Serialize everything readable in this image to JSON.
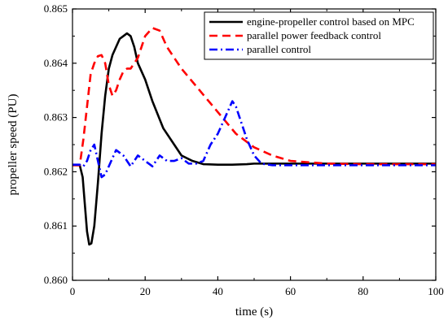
{
  "chart_data": {
    "type": "line",
    "title": "",
    "xlabel": "time (s)",
    "ylabel": "propeller speed (PU)",
    "xlim": [
      0,
      100
    ],
    "ylim": [
      0.86,
      0.865
    ],
    "x_ticks": [
      0,
      20,
      40,
      60,
      80,
      100
    ],
    "y_ticks": [
      0.86,
      0.861,
      0.862,
      0.863,
      0.864,
      0.865
    ],
    "x_tick_labels": [
      "0",
      "20",
      "40",
      "60",
      "80",
      "100"
    ],
    "y_tick_labels": [
      "0.860",
      "0.861",
      "0.862",
      "0.863",
      "0.864",
      "0.865"
    ],
    "grid": false,
    "legend_position": "top-right",
    "series": [
      {
        "name": "engine-propeller control based on MPC",
        "color": "#000000",
        "dash": "solid",
        "x": [
          0,
          2,
          2.8,
          3.4,
          4,
          4.6,
          5.2,
          6,
          7,
          8,
          9,
          10,
          11,
          12,
          13,
          14,
          15,
          16,
          17,
          18,
          20,
          22,
          25,
          28,
          30,
          33,
          36,
          40,
          44,
          48,
          50,
          55,
          60,
          70,
          80,
          90,
          100
        ],
        "y": [
          0.86212,
          0.86212,
          0.8619,
          0.8614,
          0.8609,
          0.86066,
          0.86068,
          0.861,
          0.8618,
          0.8627,
          0.8634,
          0.8639,
          0.86415,
          0.8643,
          0.86445,
          0.8645,
          0.86455,
          0.8645,
          0.8643,
          0.864,
          0.8637,
          0.8633,
          0.8628,
          0.8625,
          0.8623,
          0.8622,
          0.86214,
          0.86213,
          0.86213,
          0.86214,
          0.86215,
          0.86215,
          0.86215,
          0.86215,
          0.86215,
          0.86215,
          0.86215
        ]
      },
      {
        "name": "parallel power feedback control",
        "color": "#ff0000",
        "dash": "dashed",
        "x": [
          0,
          2,
          3,
          4,
          5,
          6,
          7,
          8,
          9,
          10,
          11,
          12,
          13,
          14,
          15,
          16,
          18,
          20,
          22,
          24,
          26,
          28,
          30,
          35,
          40,
          45,
          50,
          55,
          60,
          70,
          80,
          90,
          100
        ],
        "y": [
          0.86212,
          0.86212,
          0.8626,
          0.8632,
          0.8638,
          0.864,
          0.86413,
          0.86415,
          0.864,
          0.8636,
          0.8634,
          0.8635,
          0.8637,
          0.86385,
          0.8639,
          0.8639,
          0.8641,
          0.8645,
          0.86465,
          0.8646,
          0.8643,
          0.8641,
          0.8639,
          0.8635,
          0.8631,
          0.8627,
          0.86245,
          0.8623,
          0.8622,
          0.86215,
          0.86214,
          0.86214,
          0.86214
        ]
      },
      {
        "name": "parallel control",
        "color": "#0000ff",
        "dash": "dashdot",
        "x": [
          0,
          2,
          3,
          4,
          5,
          6,
          7,
          8,
          9,
          10,
          12,
          14,
          16,
          18,
          20,
          22,
          24,
          26,
          28,
          30,
          32,
          34,
          36,
          38,
          40,
          42,
          44,
          45,
          46,
          48,
          50,
          52,
          55,
          60,
          70,
          80,
          90,
          100
        ],
        "y": [
          0.86213,
          0.86213,
          0.8621,
          0.8622,
          0.8624,
          0.8625,
          0.8622,
          0.8619,
          0.86195,
          0.8621,
          0.8624,
          0.8623,
          0.8621,
          0.8623,
          0.8622,
          0.8621,
          0.8623,
          0.8622,
          0.8622,
          0.86225,
          0.86215,
          0.86215,
          0.8622,
          0.8625,
          0.8627,
          0.863,
          0.8633,
          0.8632,
          0.863,
          0.8626,
          0.8623,
          0.86215,
          0.86212,
          0.86212,
          0.86212,
          0.86212,
          0.86212,
          0.86212
        ]
      }
    ]
  }
}
